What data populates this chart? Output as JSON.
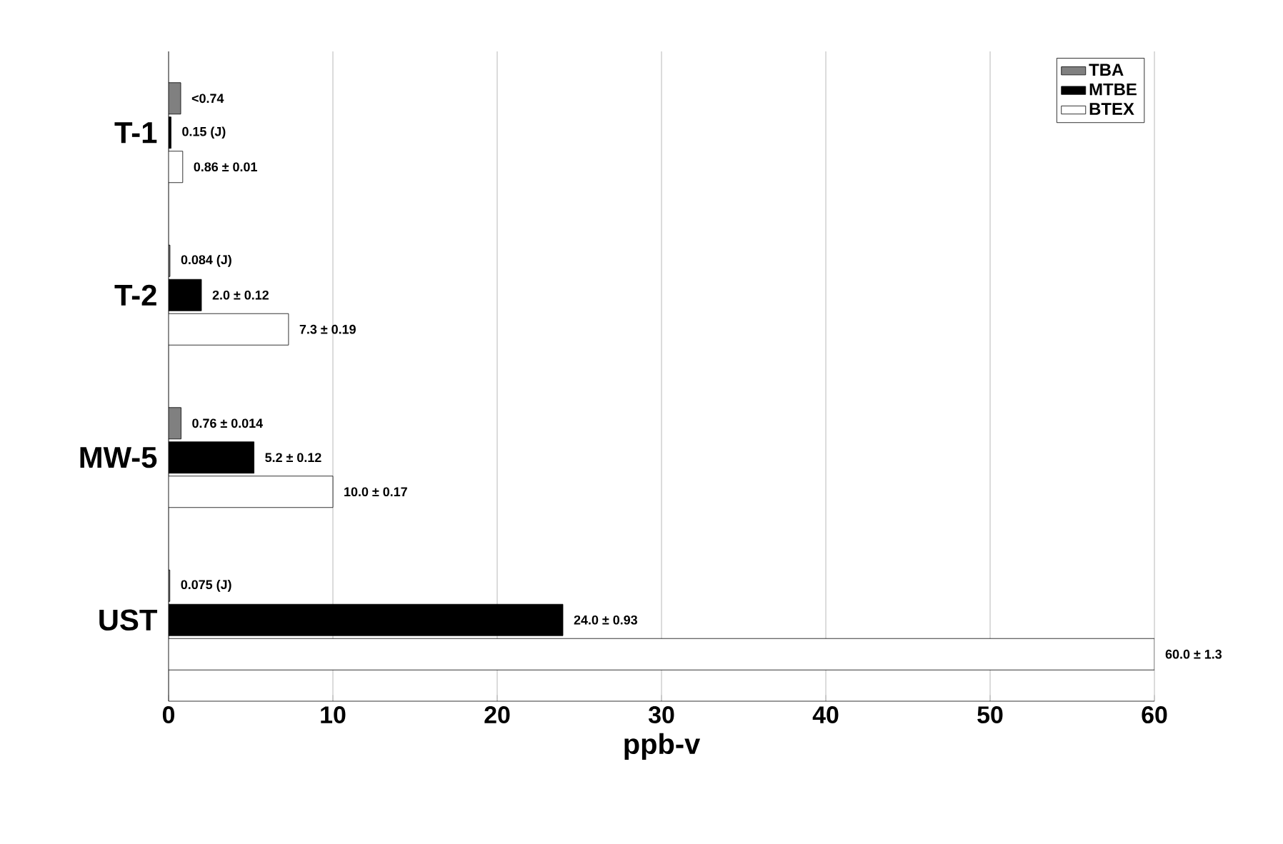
{
  "chart_data": {
    "type": "bar",
    "orientation": "horizontal",
    "xlabel": "ppb-v",
    "categories": [
      "T-1",
      "T-2",
      "MW-5",
      "UST"
    ],
    "series": [
      {
        "name": "TBA",
        "color": "#808080",
        "values": [
          0.74,
          0.084,
          0.76,
          0.075
        ],
        "value_labels": [
          "<0.74",
          "0.084 (J)",
          "0.76 ± 0.014",
          "0.075 (J)"
        ]
      },
      {
        "name": "MTBE",
        "color": "#000000",
        "values": [
          0.15,
          2.0,
          5.2,
          24.0
        ],
        "value_labels": [
          "0.15 (J)",
          "2.0 ± 0.12",
          "5.2 ± 0.12",
          "24.0 ± 0.93"
        ]
      },
      {
        "name": "BTEX",
        "color": "#ffffff",
        "values": [
          0.86,
          7.3,
          10.0,
          60.0
        ],
        "value_labels": [
          "0.86 ± 0.01",
          "7.3 ± 0.19",
          "10.0 ± 0.17",
          "60.0 ± 1.3"
        ]
      }
    ],
    "xlim": [
      0,
      60
    ],
    "xticks": [
      0,
      10,
      20,
      30,
      40,
      50,
      60
    ],
    "grid": "x",
    "legend": "top right"
  }
}
